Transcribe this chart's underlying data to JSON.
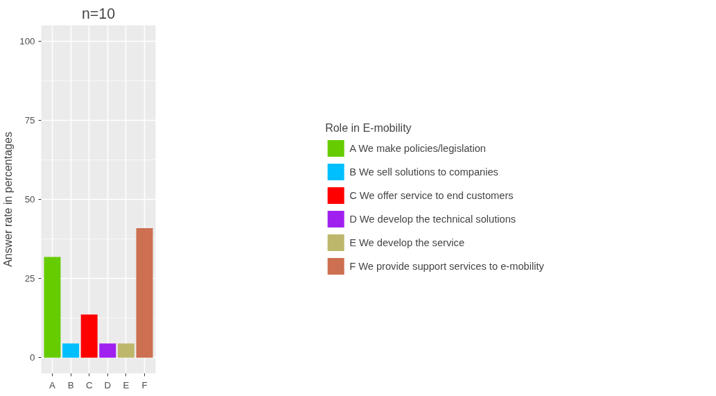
{
  "chart_data": {
    "type": "bar",
    "title": "n=10",
    "ylabel": "Answer rate in percentages",
    "legend_title": "Role in E-mobility",
    "categories": [
      "A",
      "B",
      "C",
      "D",
      "E",
      "F"
    ],
    "series": [
      {
        "name": "A We make policies/legislation",
        "color": "#66cc00",
        "values": [
          31.8,
          null,
          null,
          null,
          null,
          null
        ]
      },
      {
        "name": "B We sell solutions to companies",
        "color": "#00bfff",
        "values": [
          null,
          4.5,
          null,
          null,
          null,
          null
        ]
      },
      {
        "name": "C We offer service to end customers",
        "color": "#ff0000",
        "values": [
          null,
          null,
          13.6,
          null,
          null,
          null
        ]
      },
      {
        "name": "D We develop the technical solutions",
        "color": "#a020f0",
        "values": [
          null,
          null,
          null,
          4.5,
          null,
          null
        ]
      },
      {
        "name": "E We develop the service",
        "color": "#bdb76b",
        "values": [
          null,
          null,
          null,
          null,
          4.5,
          null
        ]
      },
      {
        "name": "F We provide support services to e-mobility",
        "color": "#cd6f51",
        "values": [
          null,
          null,
          null,
          null,
          null,
          40.9
        ]
      }
    ],
    "ylim": [
      -5,
      105
    ],
    "yticks": [
      0,
      25,
      50,
      75,
      100
    ],
    "grid": true,
    "legend": "right"
  }
}
